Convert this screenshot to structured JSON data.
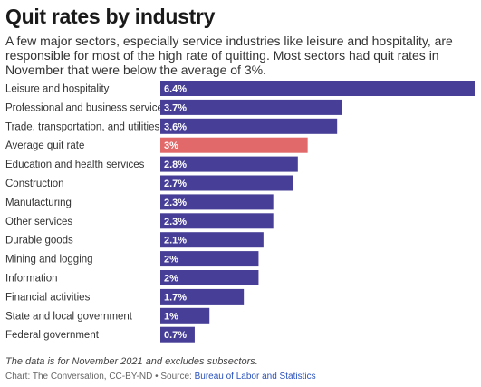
{
  "title": "Quit rates by industry",
  "subtitle": "A few major sectors, especially service industries like leisure and hospitality, are responsible for most of the high rate of quitting. Most sectors had quit rates in November that were below the average of 3%.",
  "note": "The data is for November 2021 and excludes subsectors.",
  "credit": "Chart: The Conversation, CC-BY-ND • Source:",
  "source_link": "Bureau of Labor and Statistics",
  "colors": {
    "bar": "#473f97",
    "highlight": "#e2696a",
    "link": "#2a52be"
  },
  "chart_data": {
    "type": "bar",
    "orientation": "horizontal",
    "categories": [
      "Leisure and hospitality",
      "Professional and business services",
      "Trade, transportation, and utilities",
      "Average quit rate",
      "Education and health services",
      "Construction",
      "Manufacturing",
      "Other services",
      "Durable goods",
      "Mining and logging",
      "Information",
      "Financial activities",
      "State and local government",
      "Federal government"
    ],
    "values": [
      6.4,
      3.7,
      3.6,
      3,
      2.8,
      2.7,
      2.3,
      2.3,
      2.1,
      2,
      2,
      1.7,
      1,
      0.7
    ],
    "value_labels": [
      "6.4%",
      "3.7%",
      "3.6%",
      "3%",
      "2.8%",
      "2.7%",
      "2.3%",
      "2.3%",
      "2.1%",
      "2%",
      "2%",
      "1.7%",
      "1%",
      "0.7%"
    ],
    "highlight_category": "Average quit rate",
    "xlim": [
      0,
      6.4
    ],
    "grid": false,
    "legend": "none"
  }
}
